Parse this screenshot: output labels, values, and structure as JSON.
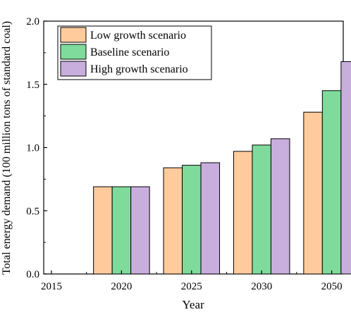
{
  "chart_data": {
    "type": "bar",
    "xlabel": "Year",
    "ylabel": "Total energy demand (100 million tons of standard coal)",
    "x_ticks": [
      "2015",
      "2020",
      "2025",
      "2030",
      "2050"
    ],
    "categories": [
      "2020",
      "2025",
      "2030",
      "2050"
    ],
    "ylim": [
      0,
      2.0
    ],
    "y_ticks": [
      "0.0",
      "0.5",
      "1.0",
      "1.5",
      "2.0"
    ],
    "y_tick_values": [
      0,
      0.5,
      1.0,
      1.5,
      2.0
    ],
    "grid": false,
    "legend_position": "top-left",
    "series": [
      {
        "name": "Low growth scenario",
        "color": "#FFCB9C",
        "values": [
          0.69,
          0.84,
          0.97,
          1.28
        ]
      },
      {
        "name": "Baseline scenario",
        "color": "#7FDB9B",
        "values": [
          0.69,
          0.86,
          1.02,
          1.45
        ]
      },
      {
        "name": "High growth scenario",
        "color": "#C8AEDD",
        "values": [
          0.69,
          0.88,
          1.07,
          1.68
        ]
      }
    ]
  }
}
